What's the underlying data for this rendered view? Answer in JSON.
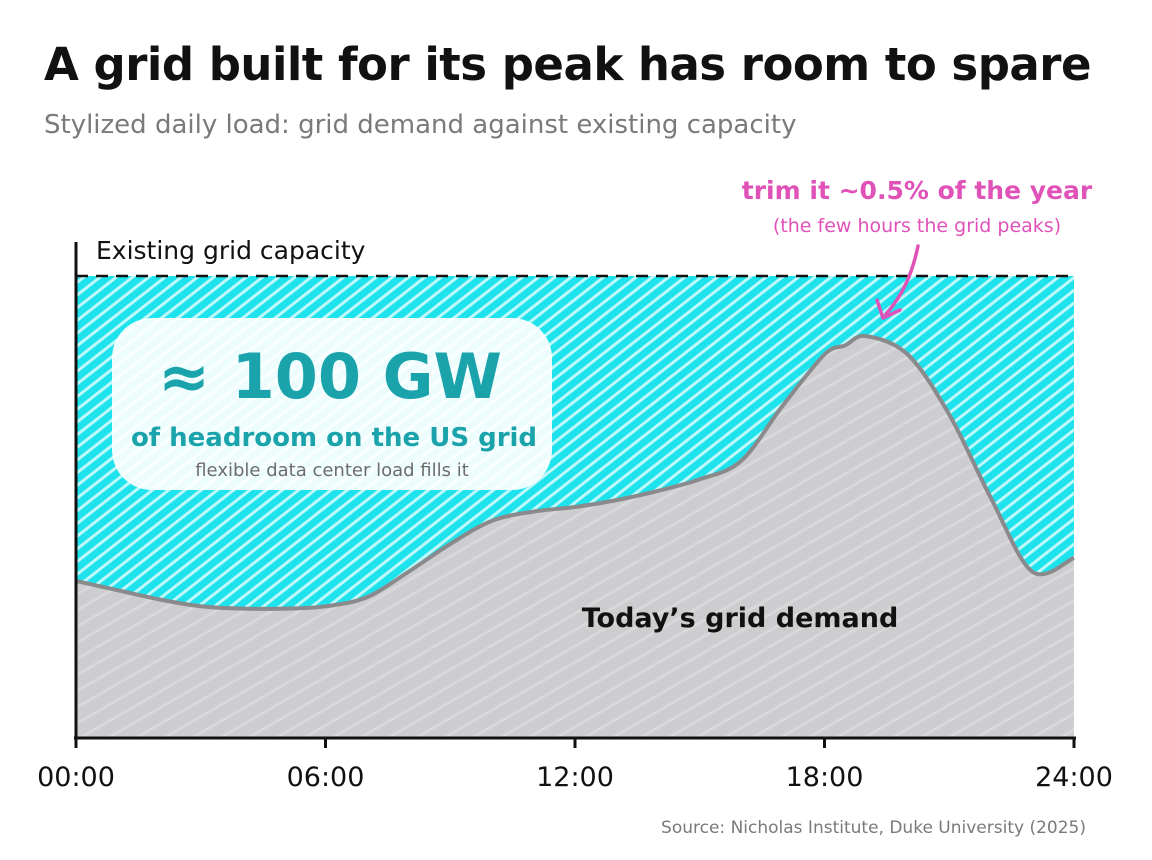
{
  "title": "A grid built for its peak has room to spare",
  "subtitle": "Stylized daily load: grid demand against existing capacity",
  "source": "Source: Nicholas Institute, Duke University (2025)",
  "colors": {
    "headroom": "#1fe3ec",
    "demand": "#cdcdcf",
    "demand_line": "#8a8a8c",
    "headline_teal": "#1aa3ab",
    "annotation_pink": "#e052b8",
    "capacity_line": "#111111"
  },
  "chart_data": {
    "type": "area",
    "xlabel": "",
    "ylabel": "",
    "x_ticks": [
      "00:00",
      "06:00",
      "12:00",
      "18:00",
      "24:00"
    ],
    "xlim": [
      0,
      24
    ],
    "ylim": [
      0,
      100
    ],
    "capacity": {
      "label": "Existing grid capacity",
      "value": 100,
      "style": "dashed"
    },
    "series": [
      {
        "name": "Today’s grid demand",
        "x": [
          0,
          1,
          2,
          3,
          4,
          5,
          6,
          7,
          8,
          9,
          10,
          11,
          12,
          13,
          14,
          15,
          16,
          17,
          18,
          18.5,
          19,
          20,
          21,
          22,
          23,
          24
        ],
        "y": [
          34,
          32,
          30,
          28.5,
          28,
          28,
          28.5,
          30.5,
          36,
          42,
          47,
          49,
          50,
          51.5,
          53.5,
          56,
          60,
          72,
          83,
          85,
          87,
          83,
          70,
          52,
          36,
          39
        ]
      }
    ],
    "headroom_callout": {
      "value": "≈ 100 GW",
      "line1": "of headroom on the US grid",
      "line2": "flexible data center load fills it"
    },
    "peak_annotation": {
      "title": "trim it ~0.5% of the year",
      "note": "(the few hours the grid peaks)",
      "x": 19,
      "y": 87
    }
  }
}
